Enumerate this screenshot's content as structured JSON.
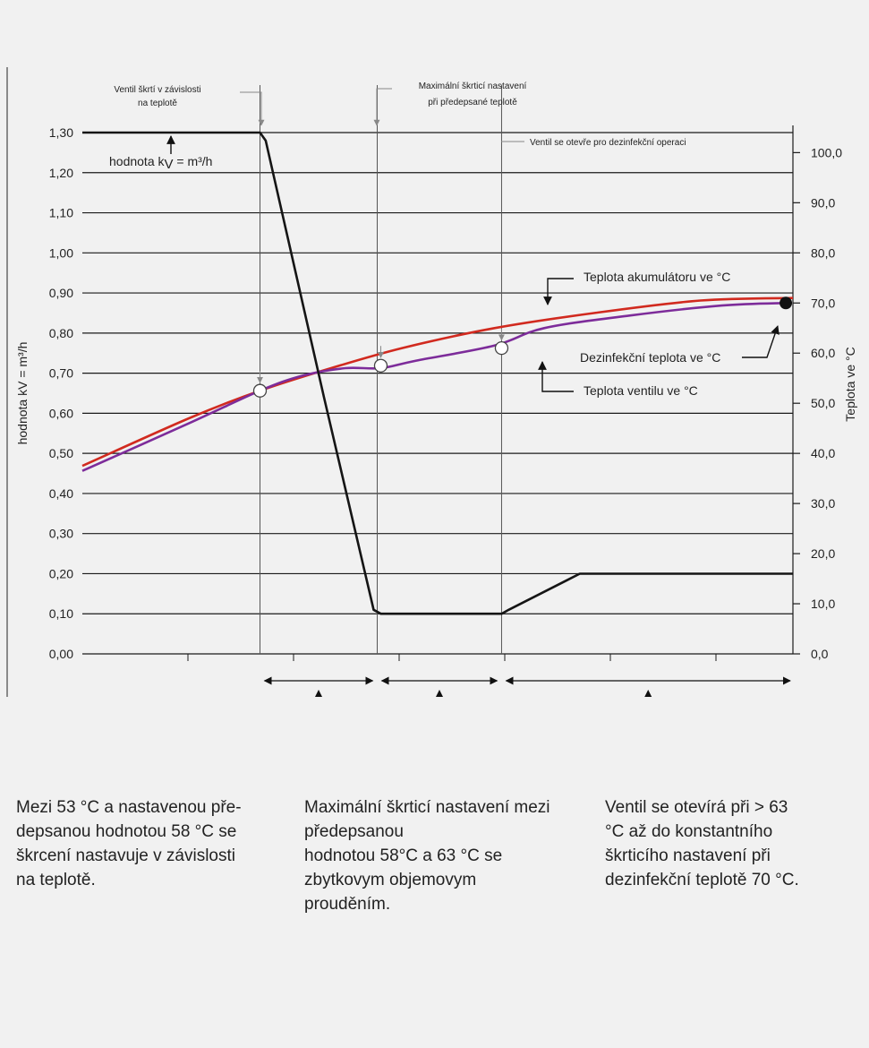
{
  "chart_data": {
    "type": "line",
    "left_axis": {
      "label": "hodnota kV = m³/h",
      "ylim": [
        0,
        1.3
      ],
      "ticks": [
        "0,00",
        "0,10",
        "0,20",
        "0,30",
        "0,40",
        "0,50",
        "0,60",
        "0,70",
        "0,80",
        "0,90",
        "1,00",
        "1,10",
        "1,20",
        "1,30"
      ]
    },
    "right_axis": {
      "label": "Teplota ve °C",
      "ylim": [
        0,
        104
      ],
      "ticks": [
        "0,0",
        "10,0",
        "20,0",
        "30,0",
        "40,0",
        "50,0",
        "60,0",
        "70,0",
        "80,0",
        "90,0",
        "100,0"
      ]
    },
    "x_range": [
      0,
      100
    ],
    "grid": true,
    "series": [
      {
        "name": "Teplota akumulátoru ve °C",
        "axis": "right",
        "color": "#d12a1f",
        "points": [
          [
            0,
            37.5
          ],
          [
            15,
            47
          ],
          [
            25,
            52.5
          ],
          [
            35,
            57
          ],
          [
            45,
            61
          ],
          [
            58,
            65
          ],
          [
            72,
            68
          ],
          [
            87,
            70.5
          ],
          [
            100,
            71
          ]
        ]
      },
      {
        "name": "Teplota ventilu ve °C",
        "axis": "right",
        "color": "#7d2c9a",
        "points": [
          [
            0,
            36.5
          ],
          [
            15,
            46
          ],
          [
            25,
            52.5
          ],
          [
            31,
            55.5
          ],
          [
            37,
            57
          ],
          [
            42,
            57
          ],
          [
            47,
            58.5
          ],
          [
            58,
            61.5
          ],
          [
            65,
            65
          ],
          [
            77,
            67.5
          ],
          [
            90,
            69.5
          ],
          [
            99,
            70
          ]
        ]
      },
      {
        "name": "hodnota kV = m³/h",
        "axis": "left",
        "color": "#151515",
        "points": [
          [
            0,
            1.3
          ],
          [
            25,
            1.3
          ],
          [
            25.8,
            1.28
          ],
          [
            34,
            0.64
          ],
          [
            41,
            0.11
          ],
          [
            42,
            0.1
          ],
          [
            59,
            0.1
          ],
          [
            60,
            0.11
          ],
          [
            70,
            0.2
          ],
          [
            100,
            0.2
          ]
        ]
      }
    ],
    "markers": [
      {
        "type": "open",
        "axis": "right",
        "x": 25,
        "y": 52.5
      },
      {
        "type": "open",
        "axis": "right",
        "x": 42,
        "y": 57.5
      },
      {
        "type": "open",
        "axis": "right",
        "x": 59,
        "y": 61
      },
      {
        "type": "filled",
        "axis": "right",
        "x": 99,
        "y": 70
      }
    ],
    "annotations": {
      "kv_label_prefix": "hodnota k",
      "kv_label_sub": "V",
      "kv_label_suffix": " = m³/h",
      "valve_throttle": [
        "Ventil škrtí v závislosti",
        "na teplotě"
      ],
      "max_throttle": [
        "Maximální škrticí nastavení",
        "při předepsané teplotě"
      ],
      "valve_opens": "Ventil se otevře pro dezinfekční operaci",
      "storage_temp": "Teplota akumulátoru ve °C",
      "disinfection_temp": "Dezinfekční teplota ve °C",
      "valve_temp": "Teplota ventilu ve °C"
    }
  },
  "notes": [
    [
      "Mezi 53 °C a nastavenou pře-",
      "depsanou hodnotou 58 °C se",
      "škrcení nastavuje v závislosti",
      "na teplotě."
    ],
    [
      "Maximální škrticí nastavení mezi",
      "předepsanou",
      "hodnotou 58°C a 63 °C se",
      "zbytkovym objemovym",
      "prouděním."
    ],
    [
      "Ventil se otevírá při > 63",
      "°C až do konstantního",
      "škrticího nastavení při",
      "dezinfekční teplotě 70 °C."
    ]
  ]
}
